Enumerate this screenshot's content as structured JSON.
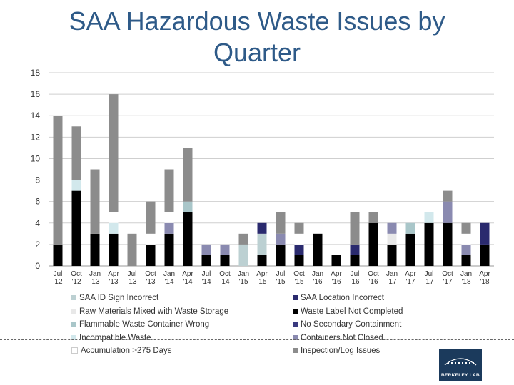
{
  "page": {
    "title": "SAA Hazardous Waste Issues by Quarter"
  },
  "chart_data": {
    "type": "bar",
    "stacked": true,
    "title": "SAA Hazardous Waste Issues by Quarter",
    "ylim": [
      0,
      18
    ],
    "yticks": [
      0,
      2,
      4,
      6,
      8,
      10,
      12,
      14,
      16,
      18
    ],
    "categories": [
      [
        "Jul",
        "'12"
      ],
      [
        "Oct",
        "'12"
      ],
      [
        "Jan",
        "'13"
      ],
      [
        "Apr",
        "'13"
      ],
      [
        "Jul",
        "'13"
      ],
      [
        "Oct",
        "'13"
      ],
      [
        "Jan",
        "'14"
      ],
      [
        "Apr",
        "'14"
      ],
      [
        "Jul",
        "'14"
      ],
      [
        "Oct",
        "'14"
      ],
      [
        "Jan",
        "'15"
      ],
      [
        "Apr",
        "'15"
      ],
      [
        "Jul",
        "'15"
      ],
      [
        "Oct",
        "'15"
      ],
      [
        "Jan",
        "'16"
      ],
      [
        "Apr",
        "'16"
      ],
      [
        "Jul",
        "'16"
      ],
      [
        "Oct",
        "'16"
      ],
      [
        "Jan",
        "'17"
      ],
      [
        "Apr",
        "'17"
      ],
      [
        "Jul",
        "'17"
      ],
      [
        "Oct",
        "'17"
      ],
      [
        "Jan",
        "'18"
      ],
      [
        "Apr",
        "'18"
      ]
    ],
    "series": [
      {
        "name": "Waste Label Not Completed",
        "color": "#000000",
        "values": [
          2,
          7,
          3,
          3,
          0,
          2,
          3,
          5,
          1,
          1,
          0,
          1,
          2,
          1,
          3,
          1,
          1,
          4,
          2,
          3,
          4,
          4,
          1,
          2
        ]
      },
      {
        "name": "Raw Materials Mixed with Waste Storage",
        "color": "#e8e8e8",
        "values": [
          0,
          0,
          0,
          0,
          0,
          0,
          0,
          0,
          0,
          0,
          0,
          0,
          0,
          0,
          0,
          0,
          0,
          0,
          1,
          0,
          0,
          0,
          0,
          0
        ]
      },
      {
        "name": "Flammable Waste Container Wrong",
        "color": "#a9c6c9",
        "values": [
          0,
          0,
          0,
          0,
          0,
          0,
          0,
          1,
          0,
          0,
          0,
          0,
          0,
          0,
          0,
          0,
          0,
          0,
          0,
          1,
          0,
          0,
          0,
          0
        ]
      },
      {
        "name": "SAA ID Sign Incorrect",
        "color": "#bcd0d2",
        "values": [
          0,
          0,
          0,
          0,
          0,
          0,
          0,
          0,
          0,
          0,
          2,
          2,
          0,
          0,
          0,
          0,
          0,
          0,
          0,
          0,
          0,
          0,
          0,
          0
        ]
      },
      {
        "name": "Incompatible Waste",
        "color": "#d2e8ec",
        "values": [
          0,
          1,
          0,
          1,
          0,
          0,
          0,
          0,
          0,
          0,
          0,
          0,
          0,
          0,
          0,
          0,
          0,
          0,
          0,
          0,
          1,
          0,
          0,
          0
        ]
      },
      {
        "name": "SAA Location Incorrect",
        "color": "#2a2a6e",
        "values": [
          0,
          0,
          0,
          0,
          0,
          0,
          0,
          0,
          0,
          0,
          0,
          1,
          0,
          1,
          0,
          0,
          1,
          0,
          0,
          0,
          0,
          0,
          0,
          2
        ]
      },
      {
        "name": "Containers Not Closed",
        "color": "#8a8ab0",
        "values": [
          0,
          0,
          0,
          0,
          0,
          0,
          1,
          0,
          1,
          1,
          0,
          0,
          1,
          0,
          0,
          0,
          0,
          0,
          1,
          0,
          0,
          2,
          1,
          0
        ]
      },
      {
        "name": "No Secondary Containment",
        "color": "#3a3a80",
        "values": [
          0,
          0,
          0,
          0,
          0,
          0,
          0,
          0,
          0,
          0,
          0,
          0,
          0,
          0,
          0,
          0,
          0,
          0,
          0,
          0,
          0,
          0,
          0,
          0
        ]
      },
      {
        "name": "Accumulation >275 Days",
        "color": "#ffffff",
        "values": [
          0,
          0,
          0,
          1,
          0,
          1,
          1,
          0,
          0,
          0,
          0,
          0,
          0,
          1,
          0,
          0,
          0,
          0,
          0,
          0,
          0,
          0,
          1,
          0
        ]
      },
      {
        "name": "Inspection/Log Issues",
        "color": "#8c8c8c",
        "values": [
          12,
          5,
          6,
          11,
          3,
          3,
          4,
          5,
          0,
          0,
          1,
          0,
          2,
          1,
          0,
          0,
          3,
          1,
          0,
          0,
          0,
          1,
          1,
          0
        ]
      }
    ],
    "legend": [
      {
        "label": "SAA ID Sign Incorrect",
        "color": "#bcd0d2"
      },
      {
        "label": "SAA Location Incorrect",
        "color": "#2a2a6e"
      },
      {
        "label": "Raw Materials Mixed with Waste Storage",
        "color": "#e8e8e8"
      },
      {
        "label": "Waste Label Not Completed",
        "color": "#000000"
      },
      {
        "label": "Flammable Waste Container Wrong",
        "color": "#a9c6c9"
      },
      {
        "label": "No Secondary Containment",
        "color": "#3a3a80"
      },
      {
        "label": "Incompatible Waste",
        "color": "#d2e8ec"
      },
      {
        "label": "Containers Not Closed",
        "color": "#8a8ab0"
      },
      {
        "label": "Accumulation >275 Days",
        "color": "#ffffff"
      },
      {
        "label": "Inspection/Log Issues",
        "color": "#8c8c8c"
      }
    ]
  },
  "logo": {
    "text": "BERKELEY LAB"
  }
}
